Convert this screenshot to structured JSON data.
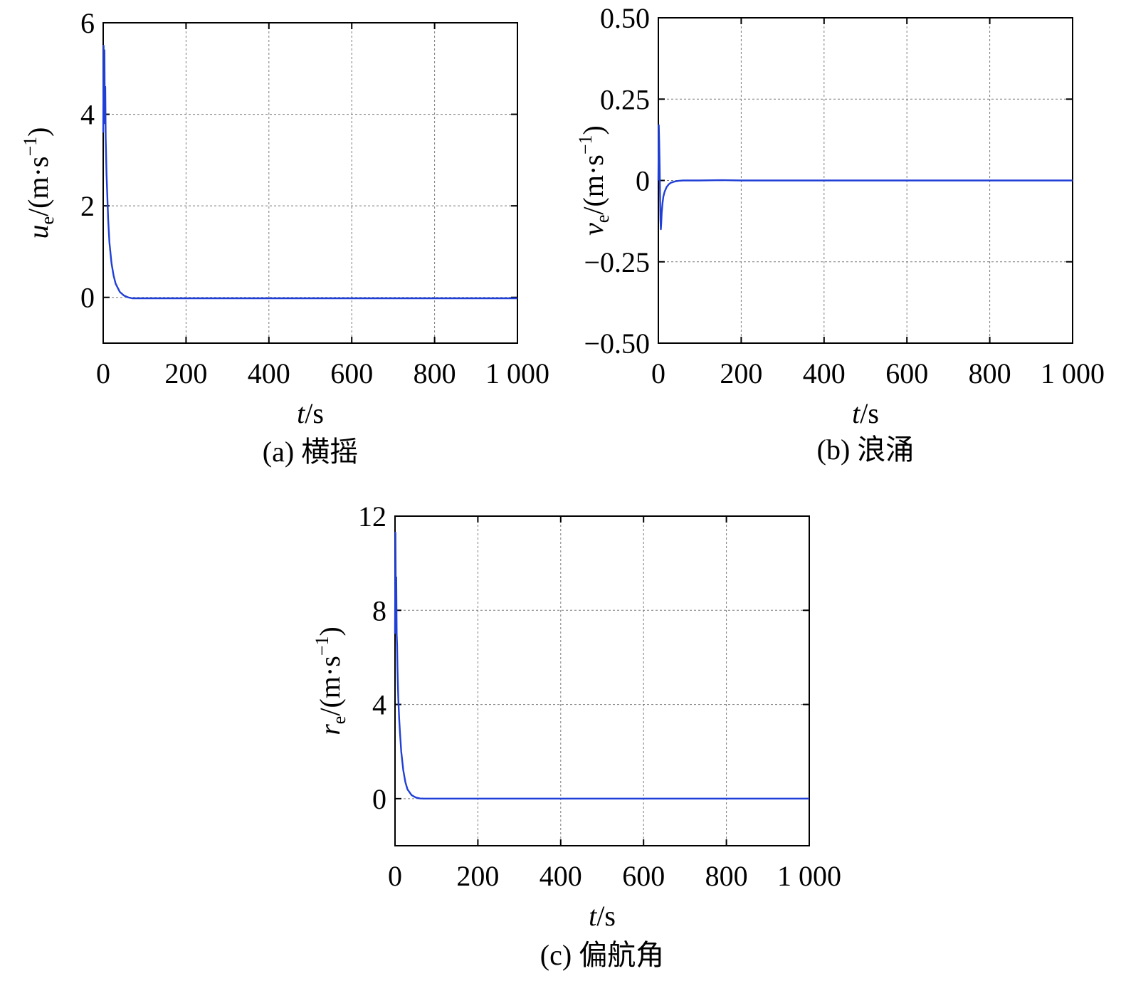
{
  "chart_data": [
    {
      "type": "line",
      "caption": "(a) 横摇",
      "xlabel": {
        "var": "t",
        "unit": "/s"
      },
      "ylabel": {
        "var": "u",
        "sub": "e",
        "unit": "/(m·s",
        "sup": "−1",
        "close": ")"
      },
      "xlim": [
        0,
        1000
      ],
      "ylim": [
        -1,
        6
      ],
      "xticks": [
        0,
        200,
        400,
        600,
        800,
        1000
      ],
      "xtick_labels": [
        "0",
        "200",
        "400",
        "600",
        "800",
        "1 000"
      ],
      "yticks": [
        0,
        2,
        4,
        6
      ],
      "ytick_labels": [
        "0",
        "2",
        "4",
        "6"
      ],
      "grid": true,
      "series": [
        {
          "color": "#1f3fd6",
          "x": [
            0,
            1,
            2,
            3,
            4,
            5,
            6,
            7,
            8,
            10,
            12,
            15,
            20,
            25,
            30,
            40,
            50,
            60,
            70,
            80,
            100,
            200,
            400,
            600,
            800,
            1000
          ],
          "y": [
            3.6,
            5.5,
            4.2,
            5.4,
            3.8,
            4.6,
            3.5,
            3.1,
            2.7,
            2.2,
            1.7,
            1.2,
            0.75,
            0.48,
            0.3,
            0.12,
            0.04,
            0.0,
            -0.02,
            -0.02,
            -0.02,
            -0.02,
            -0.02,
            -0.02,
            -0.02,
            -0.02
          ]
        }
      ]
    },
    {
      "type": "line",
      "caption": "(b) 浪涌",
      "xlabel": {
        "var": "t",
        "unit": "/s"
      },
      "ylabel": {
        "var": "v",
        "sub": "e",
        "unit": "/(m·s",
        "sup": "−1",
        "close": ")"
      },
      "xlim": [
        0,
        1000
      ],
      "ylim": [
        -0.5,
        0.5
      ],
      "xticks": [
        0,
        200,
        400,
        600,
        800,
        1000
      ],
      "xtick_labels": [
        "0",
        "200",
        "400",
        "600",
        "800",
        "1 000"
      ],
      "yticks": [
        -0.5,
        -0.25,
        0,
        0.25,
        0.5
      ],
      "ytick_labels": [
        "−0.50",
        "−0.25",
        "0",
        "0.25",
        "0.50"
      ],
      "grid": true,
      "series": [
        {
          "color": "#1f3fd6",
          "x": [
            0,
            1,
            2,
            3,
            4,
            5,
            6,
            7,
            8,
            10,
            12,
            15,
            20,
            25,
            30,
            40,
            50,
            60,
            80,
            100,
            150,
            200,
            400,
            600,
            800,
            1000
          ],
          "y": [
            0.0,
            0.17,
            0.12,
            0.05,
            -0.04,
            -0.12,
            -0.15,
            -0.13,
            -0.1,
            -0.07,
            -0.05,
            -0.035,
            -0.02,
            -0.012,
            -0.007,
            -0.003,
            -0.001,
            0.0,
            0.0,
            0.0,
            0.001,
            0.0,
            0.0,
            0.0,
            0.0,
            0.0
          ]
        }
      ]
    },
    {
      "type": "line",
      "caption": "(c) 偏航角",
      "xlabel": {
        "var": "t",
        "unit": "/s"
      },
      "ylabel": {
        "var": "r",
        "sub": "e",
        "unit": "/(m·s",
        "sup": "−1",
        "close": ")"
      },
      "xlim": [
        0,
        1000
      ],
      "ylim": [
        -2,
        12
      ],
      "xticks": [
        0,
        200,
        400,
        600,
        800,
        1000
      ],
      "xtick_labels": [
        "0",
        "200",
        "400",
        "600",
        "800",
        "1 000"
      ],
      "yticks": [
        0,
        4,
        8,
        12
      ],
      "ytick_labels": [
        "0",
        "4",
        "8",
        "12"
      ],
      "grid": true,
      "series": [
        {
          "color": "#1f3fd6",
          "x": [
            0,
            1,
            2,
            3,
            4,
            5,
            6,
            7,
            8,
            10,
            12,
            15,
            20,
            25,
            30,
            40,
            50,
            60,
            70,
            80,
            100,
            200,
            400,
            600,
            800,
            1000
          ],
          "y": [
            7.0,
            11.3,
            8.5,
            9.4,
            7.0,
            6.5,
            5.5,
            4.8,
            4.2,
            3.4,
            2.8,
            2.0,
            1.2,
            0.7,
            0.4,
            0.15,
            0.05,
            0.01,
            0.0,
            0.0,
            0.0,
            0.0,
            0.0,
            0.0,
            0.0,
            0.0
          ]
        }
      ]
    }
  ]
}
